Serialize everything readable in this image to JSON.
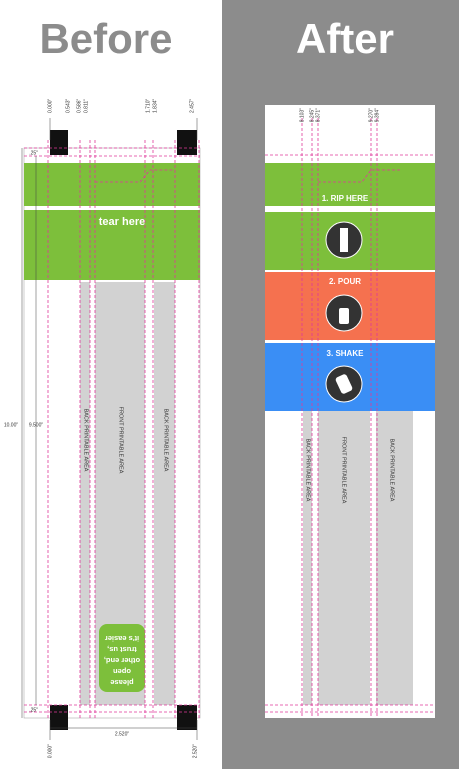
{
  "before": {
    "title": "Before",
    "top_dims": [
      "0.000\"",
      "0.543\"",
      "0.586\"",
      "0.811\"",
      "1.710\"",
      "1.834\"",
      "2.457\""
    ],
    "side_dims": {
      "top": ".25\"",
      "total": "10.00\"",
      "inner": "9.500\"",
      "bottom": ".25\""
    },
    "bottom_dims": {
      "width": "2.520\"",
      "left": "0.000\"",
      "right": "2.520\""
    },
    "tear_label": "tear here",
    "areas": [
      "BACK PRINTABLE AREA",
      "FRONT PRINTABLE AREA",
      "BACK PRINTABLE AREA"
    ],
    "note_lines": [
      "please",
      "open",
      "other end,",
      "trust us,",
      "it's easier"
    ]
  },
  "after": {
    "title": "After",
    "top_dims": [
      "8.103\"",
      "8.245\"",
      "8.371\"",
      "9.270\"",
      "9.394\""
    ],
    "steps": [
      "1. RIP HERE",
      "2. POUR",
      "3. SHAKE"
    ],
    "areas": [
      "BACK PRINTABLE AREA",
      "FRONT PRINTABLE AREA",
      "BACK PRINTABLE AREA"
    ]
  }
}
